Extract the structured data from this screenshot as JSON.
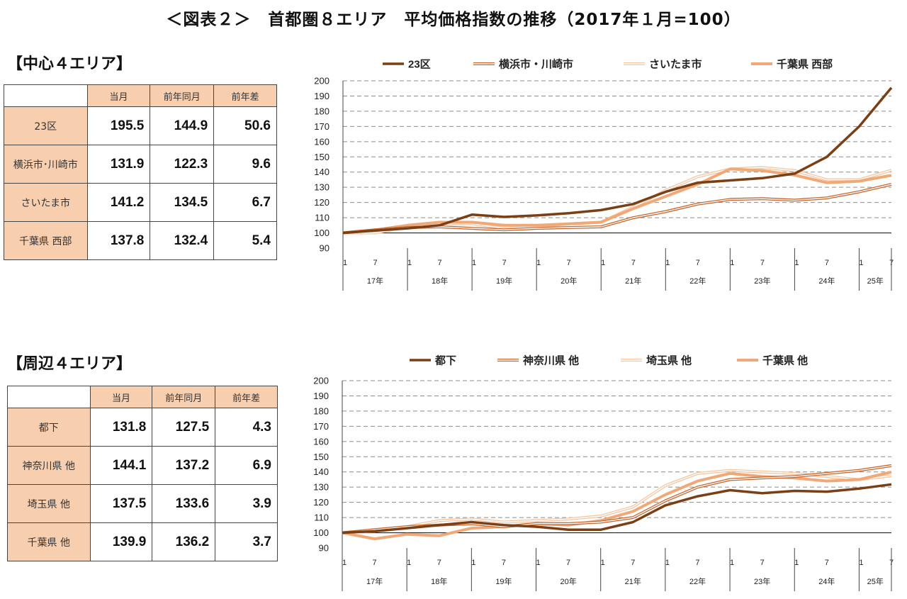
{
  "page": {
    "title": "＜図表２＞　首都圏８エリア　平均価格指数の推移（2017年１月=100）"
  },
  "central": {
    "heading": "【中心４エリア】",
    "table": {
      "headers": [
        "当月",
        "前年同月",
        "前年差"
      ],
      "rows": [
        {
          "label": "23区",
          "values": [
            "195.5",
            "144.9",
            "50.6"
          ]
        },
        {
          "label": "横浜市･川崎市",
          "values": [
            "131.9",
            "122.3",
            "9.6"
          ]
        },
        {
          "label": "さいたま市",
          "values": [
            "141.2",
            "134.5",
            "6.7"
          ]
        },
        {
          "label": "千葉県 西部",
          "values": [
            "137.8",
            "132.4",
            "5.4"
          ]
        }
      ]
    }
  },
  "peripheral": {
    "heading": "【周辺４エリア】",
    "table": {
      "headers": [
        "当月",
        "前年同月",
        "前年差"
      ],
      "rows": [
        {
          "label": "都下",
          "values": [
            "131.8",
            "127.5",
            "4.3"
          ]
        },
        {
          "label": "神奈川県 他",
          "values": [
            "144.1",
            "137.2",
            "6.9"
          ]
        },
        {
          "label": "埼玉県 他",
          "values": [
            "137.5",
            "133.6",
            "3.9"
          ]
        },
        {
          "label": "千葉県 他",
          "values": [
            "139.9",
            "136.2",
            "3.7"
          ]
        }
      ]
    }
  },
  "colors": {
    "series1": "#7b3f14",
    "series2": "#c8682e",
    "series3": "#f6c6a2",
    "series4": "#f0a976",
    "table_header": "#f8cfae",
    "grid": "#8c8c8c"
  },
  "chart_data": [
    {
      "type": "line",
      "ylim": [
        90,
        200
      ],
      "yticks": [
        90,
        100,
        110,
        120,
        130,
        140,
        150,
        160,
        170,
        180,
        190,
        200
      ],
      "grid": "dashed horizontal",
      "legend": "top",
      "x_month_ticks": [
        "1",
        "7"
      ],
      "x_year_labels": [
        "17年",
        "18年",
        "19年",
        "20年",
        "21年",
        "22年",
        "23年",
        "24年",
        "25年"
      ],
      "x_range": [
        "2017-01",
        "2025-07"
      ],
      "series": [
        {
          "name": "23区",
          "x": [
            "2017-01",
            "2017-07",
            "2018-01",
            "2018-07",
            "2019-01",
            "2019-07",
            "2020-01",
            "2020-07",
            "2021-01",
            "2021-07",
            "2022-01",
            "2022-07",
            "2023-01",
            "2023-07",
            "2024-01",
            "2024-07",
            "2025-01",
            "2025-07"
          ],
          "values": [
            100,
            101.5,
            103,
            105,
            112,
            110.5,
            111.5,
            113,
            115,
            119,
            127,
            133,
            134.5,
            136,
            139,
            150,
            170,
            195.5
          ]
        },
        {
          "name": "横浜市・川崎市",
          "x": [
            "2017-01",
            "2017-07",
            "2018-01",
            "2018-07",
            "2019-01",
            "2019-07",
            "2020-01",
            "2020-07",
            "2021-01",
            "2021-07",
            "2022-01",
            "2022-07",
            "2023-01",
            "2023-07",
            "2024-01",
            "2024-07",
            "2025-01",
            "2025-07"
          ],
          "values": [
            100,
            102,
            103.5,
            104,
            103,
            102,
            103,
            103.5,
            104,
            110,
            114,
            119,
            122,
            122.5,
            121.5,
            123,
            127,
            131.9
          ]
        },
        {
          "name": "さいたま市",
          "x": [
            "2017-01",
            "2017-07",
            "2018-01",
            "2018-07",
            "2019-01",
            "2019-07",
            "2020-01",
            "2020-07",
            "2021-01",
            "2021-07",
            "2022-01",
            "2022-07",
            "2023-01",
            "2023-07",
            "2024-01",
            "2024-07",
            "2025-01",
            "2025-07"
          ],
          "values": [
            100,
            100,
            104,
            106,
            106,
            103,
            104,
            106,
            107,
            117,
            128,
            137,
            142,
            143,
            141,
            135,
            135,
            141.2
          ]
        },
        {
          "name": "千葉県 西部",
          "x": [
            "2017-01",
            "2017-07",
            "2018-01",
            "2018-07",
            "2019-01",
            "2019-07",
            "2020-01",
            "2020-07",
            "2021-01",
            "2021-07",
            "2022-01",
            "2022-07",
            "2023-01",
            "2023-07",
            "2024-01",
            "2024-07",
            "2025-01",
            "2025-07"
          ],
          "values": [
            100,
            102,
            105,
            107,
            107,
            105,
            105,
            106,
            107,
            116,
            124,
            132,
            142,
            141,
            138,
            133,
            134,
            137.8
          ]
        }
      ]
    },
    {
      "type": "line",
      "ylim": [
        90,
        200
      ],
      "yticks": [
        90,
        100,
        110,
        120,
        130,
        140,
        150,
        160,
        170,
        180,
        190,
        200
      ],
      "grid": "dashed horizontal",
      "legend": "top",
      "x_month_ticks": [
        "1",
        "7"
      ],
      "x_year_labels": [
        "17年",
        "18年",
        "19年",
        "20年",
        "21年",
        "22年",
        "23年",
        "24年",
        "25年"
      ],
      "x_range": [
        "2017-01",
        "2025-07"
      ],
      "series": [
        {
          "name": "都下",
          "x": [
            "2017-01",
            "2017-07",
            "2018-01",
            "2018-07",
            "2019-01",
            "2019-07",
            "2020-01",
            "2020-07",
            "2021-01",
            "2021-07",
            "2022-01",
            "2022-07",
            "2023-01",
            "2023-07",
            "2024-01",
            "2024-07",
            "2025-01",
            "2025-07"
          ],
          "values": [
            100,
            101,
            103,
            105,
            107,
            105,
            104,
            102,
            102,
            107,
            118,
            124,
            128,
            126,
            127.5,
            127,
            129,
            131.8
          ]
        },
        {
          "name": "神奈川県 他",
          "x": [
            "2017-01",
            "2017-07",
            "2018-01",
            "2018-07",
            "2019-01",
            "2019-07",
            "2020-01",
            "2020-07",
            "2021-01",
            "2021-07",
            "2022-01",
            "2022-07",
            "2023-01",
            "2023-07",
            "2024-01",
            "2024-07",
            "2025-01",
            "2025-07"
          ],
          "values": [
            100,
            102,
            104,
            105,
            106,
            104,
            106,
            106,
            107,
            110,
            121,
            130,
            135,
            136,
            137,
            139,
            141,
            144.1
          ]
        },
        {
          "name": "埼玉県 他",
          "x": [
            "2017-01",
            "2017-07",
            "2018-01",
            "2018-07",
            "2019-01",
            "2019-07",
            "2020-01",
            "2020-07",
            "2021-01",
            "2021-07",
            "2022-01",
            "2022-07",
            "2023-01",
            "2023-07",
            "2024-01",
            "2024-07",
            "2025-01",
            "2025-07"
          ],
          "values": [
            100,
            101,
            104,
            108,
            109,
            107,
            108,
            109,
            111,
            117,
            131,
            139,
            141,
            140,
            139,
            137,
            135,
            137.5
          ]
        },
        {
          "name": "千葉県 他",
          "x": [
            "2017-01",
            "2017-07",
            "2018-01",
            "2018-07",
            "2019-01",
            "2019-07",
            "2020-01",
            "2020-07",
            "2021-01",
            "2021-07",
            "2022-01",
            "2022-07",
            "2023-01",
            "2023-07",
            "2024-01",
            "2024-07",
            "2025-01",
            "2025-07"
          ],
          "values": [
            100,
            96,
            99,
            98,
            103,
            104,
            106,
            105,
            108,
            114,
            125,
            134,
            139,
            137,
            136,
            134,
            135,
            139.9
          ]
        }
      ]
    }
  ]
}
